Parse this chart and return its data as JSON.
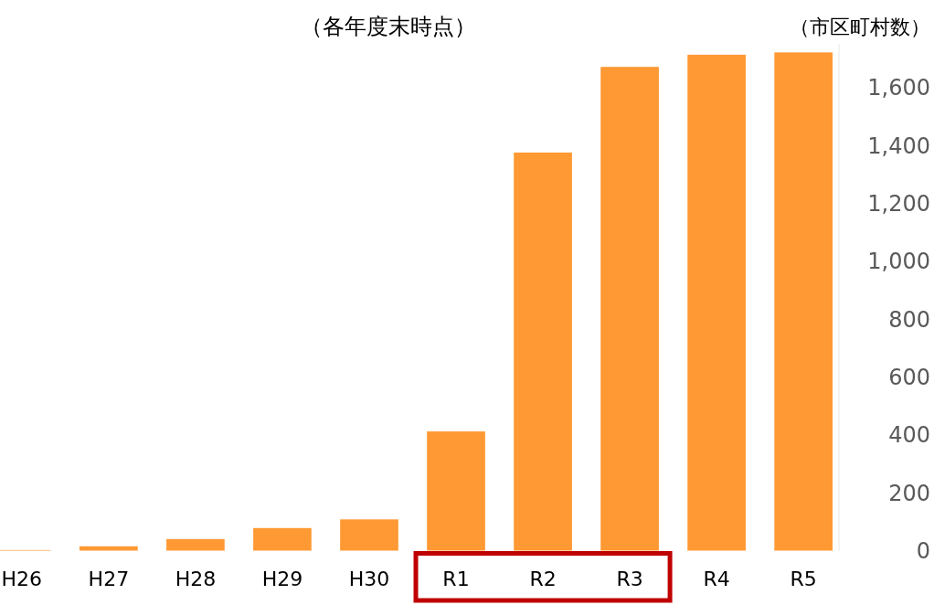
{
  "chart_data": {
    "type": "bar",
    "title": "（各年度末時点）",
    "ylabel": "（市区町村数）",
    "categories": [
      "H26",
      "H27",
      "H28",
      "H29",
      "H30",
      "R1",
      "R2",
      "R3",
      "R4",
      "R5"
    ],
    "values": [
      2,
      15,
      40,
      78,
      108,
      412,
      1376,
      1672,
      1714,
      1722
    ],
    "color": "#ff9933",
    "ylim": [
      0,
      1750
    ],
    "yticks": [
      0,
      {
        "value": 200,
        "label": "200"
      },
      {
        "value": 400,
        "label": "400"
      },
      {
        "value": 600,
        "label": "600"
      },
      {
        "value": 800,
        "label": "800"
      },
      {
        "value": 1000,
        "label": "1,000"
      },
      {
        "value": 1200,
        "label": "1,200"
      },
      {
        "value": 1400,
        "label": "1,400"
      },
      {
        "value": 1600,
        "label": "1,600"
      }
    ],
    "grid": false
  }
}
